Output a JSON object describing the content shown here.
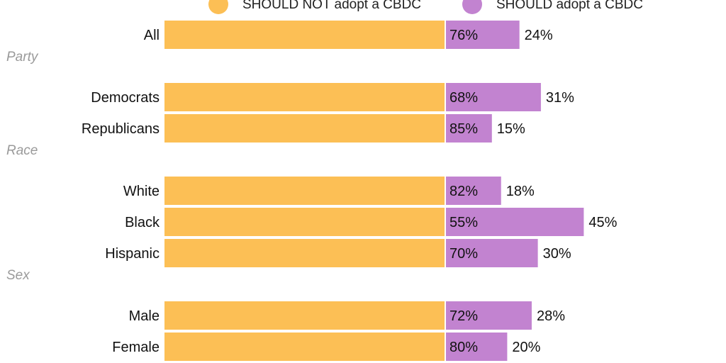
{
  "colors": {
    "should_not": "#fcbf55",
    "should": "#c283d0"
  },
  "legend": [
    {
      "label": "SHOULD NOT adopt a CBDC",
      "color": "#fcbf55"
    },
    {
      "label": "SHOULD adopt a CBDC",
      "color": "#c283d0"
    }
  ],
  "chart_data": {
    "type": "bar",
    "orientation": "horizontal",
    "stacked": true,
    "xlim": [
      0,
      100
    ],
    "grid": false,
    "legend_position": "top",
    "series": [
      {
        "name": "SHOULD NOT adopt a CBDC",
        "color": "#fcbf55"
      },
      {
        "name": "SHOULD adopt a CBDC",
        "color": "#c283d0"
      }
    ],
    "rows": [
      {
        "group": "",
        "label": "All",
        "should_not": 76,
        "should": 24,
        "should_not_label": "76%",
        "should_label": "24%"
      },
      {
        "group": "Party",
        "label": "Democrats",
        "should_not": 68,
        "should": 31,
        "should_not_label": "68%",
        "should_label": "31%"
      },
      {
        "group": "Party",
        "label": "Republicans",
        "should_not": 85,
        "should": 15,
        "should_not_label": "85%",
        "should_label": "15%"
      },
      {
        "group": "Race",
        "label": "White",
        "should_not": 82,
        "should": 18,
        "should_not_label": "82%",
        "should_label": "18%"
      },
      {
        "group": "Race",
        "label": "Black",
        "should_not": 55,
        "should": 45,
        "should_not_label": "55%",
        "should_label": "45%"
      },
      {
        "group": "Race",
        "label": "Hispanic",
        "should_not": 70,
        "should": 30,
        "should_not_label": "70%",
        "should_label": "30%"
      },
      {
        "group": "Sex",
        "label": "Male",
        "should_not": 72,
        "should": 28,
        "should_not_label": "72%",
        "should_label": "28%"
      },
      {
        "group": "Sex",
        "label": "Female",
        "should_not": 80,
        "should": 20,
        "should_not_label": "80%",
        "should_label": "20%"
      }
    ]
  }
}
